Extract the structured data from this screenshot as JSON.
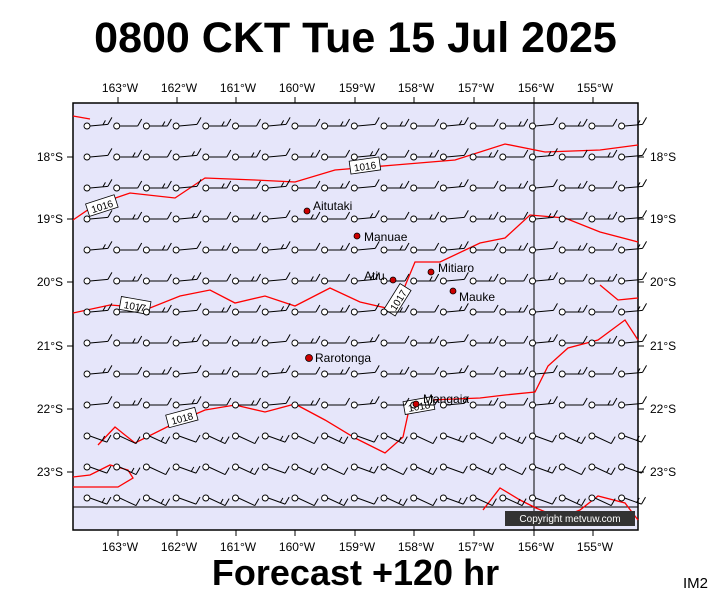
{
  "title": "0800 CKT Tue 15 Jul 2025",
  "footer": "Forecast +120 hr",
  "chart_code": "IM2",
  "copyright": "Copyright metvuw.com",
  "colors": {
    "background": "#e6e6fa",
    "isobar": "#ff0000",
    "island": "#cc0000",
    "frame": "#000000"
  },
  "longitude_labels": [
    "163°W",
    "162°W",
    "161°W",
    "160°W",
    "159°W",
    "158°W",
    "157°W",
    "156°W",
    "155°W"
  ],
  "latitude_labels": [
    "18°S",
    "19°S",
    "20°S",
    "21°S",
    "22°S",
    "23°S"
  ],
  "isobar_labels": [
    "1016",
    "1016",
    "1017",
    "1017",
    "1018",
    "1018"
  ],
  "islands": [
    {
      "name": "Aitutaki",
      "lon": -159.78,
      "lat": -18.86
    },
    {
      "name": "Manuae",
      "lon": -158.96,
      "lat": -19.26
    },
    {
      "name": "Atiu",
      "lon": -158.12,
      "lat": -19.99
    },
    {
      "name": "Mitiaro",
      "lon": -157.72,
      "lat": -19.86
    },
    {
      "name": "Mauke",
      "lon": -157.35,
      "lat": -20.15
    },
    {
      "name": "Rarotonga",
      "lon": -159.78,
      "lat": -21.23
    },
    {
      "name": "Mangaia",
      "lon": -157.92,
      "lat": -21.92
    }
  ]
}
